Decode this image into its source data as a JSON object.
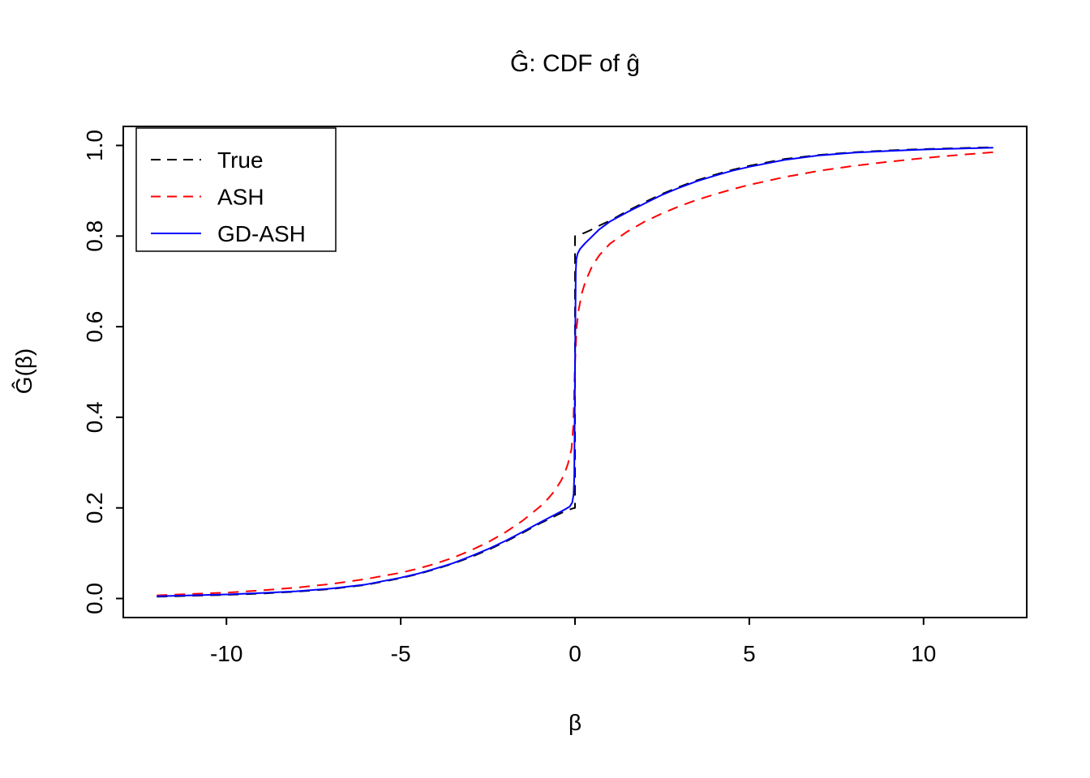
{
  "chart_data": {
    "type": "line",
    "title": "Ĝ: CDF of ĝ",
    "xlabel": "β",
    "ylabel": "Ĝ(β)",
    "xlim": [
      -12.96,
      12.96
    ],
    "ylim": [
      -0.042,
      1.042
    ],
    "x_ticks": [
      {
        "v": -10,
        "label": "-10"
      },
      {
        "v": -5,
        "label": "-5"
      },
      {
        "v": 0,
        "label": "0"
      },
      {
        "v": 5,
        "label": "5"
      },
      {
        "v": 10,
        "label": "10"
      }
    ],
    "y_ticks": [
      {
        "v": 0.0,
        "label": "0.0"
      },
      {
        "v": 0.2,
        "label": "0.2"
      },
      {
        "v": 0.4,
        "label": "0.4"
      },
      {
        "v": 0.6,
        "label": "0.6"
      },
      {
        "v": 0.8,
        "label": "0.8"
      },
      {
        "v": 1.0,
        "label": "1.0"
      }
    ],
    "legend_position": "top-left",
    "series": [
      {
        "name": "True",
        "color": "#000000",
        "dash": "dashed",
        "points": [
          [
            -12,
            0.004
          ],
          [
            -11,
            0.006
          ],
          [
            -10,
            0.008
          ],
          [
            -9,
            0.011
          ],
          [
            -8,
            0.015
          ],
          [
            -7,
            0.021
          ],
          [
            -6,
            0.03
          ],
          [
            -5,
            0.045
          ],
          [
            -4.5,
            0.054
          ],
          [
            -4,
            0.065
          ],
          [
            -3.5,
            0.077
          ],
          [
            -3,
            0.091
          ],
          [
            -2.5,
            0.107
          ],
          [
            -2,
            0.125
          ],
          [
            -1.5,
            0.145
          ],
          [
            -1,
            0.166
          ],
          [
            -0.7,
            0.177
          ],
          [
            -0.5,
            0.185
          ],
          [
            -0.3,
            0.192
          ],
          [
            -0.1,
            0.198
          ],
          [
            0,
            0.2
          ],
          [
            0,
            0.8
          ],
          [
            0.1,
            0.802
          ],
          [
            0.3,
            0.808
          ],
          [
            0.5,
            0.815
          ],
          [
            0.7,
            0.823
          ],
          [
            1,
            0.834
          ],
          [
            1.5,
            0.855
          ],
          [
            2,
            0.875
          ],
          [
            2.5,
            0.893
          ],
          [
            3,
            0.909
          ],
          [
            3.5,
            0.923
          ],
          [
            4,
            0.935
          ],
          [
            4.5,
            0.946
          ],
          [
            5,
            0.955
          ],
          [
            6,
            0.97
          ],
          [
            7,
            0.979
          ],
          [
            8,
            0.985
          ],
          [
            9,
            0.989
          ],
          [
            10,
            0.992
          ],
          [
            11,
            0.994
          ],
          [
            12,
            0.996
          ]
        ]
      },
      {
        "name": "ASH",
        "color": "#ff0000",
        "dash": "dashed",
        "points": [
          [
            -12,
            0.007
          ],
          [
            -11,
            0.01
          ],
          [
            -10,
            0.013
          ],
          [
            -9,
            0.018
          ],
          [
            -8,
            0.024
          ],
          [
            -7,
            0.032
          ],
          [
            -6,
            0.043
          ],
          [
            -5,
            0.057
          ],
          [
            -4.5,
            0.066
          ],
          [
            -4,
            0.077
          ],
          [
            -3.5,
            0.09
          ],
          [
            -3,
            0.106
          ],
          [
            -2.5,
            0.124
          ],
          [
            -2,
            0.146
          ],
          [
            -1.5,
            0.172
          ],
          [
            -1,
            0.203
          ],
          [
            -0.8,
            0.218
          ],
          [
            -0.6,
            0.236
          ],
          [
            -0.4,
            0.26
          ],
          [
            -0.3,
            0.276
          ],
          [
            -0.2,
            0.298
          ],
          [
            -0.1,
            0.33
          ],
          [
            -0.05,
            0.38
          ],
          [
            0,
            0.52
          ],
          [
            0.05,
            0.6
          ],
          [
            0.1,
            0.635
          ],
          [
            0.2,
            0.675
          ],
          [
            0.3,
            0.7
          ],
          [
            0.5,
            0.735
          ],
          [
            0.7,
            0.758
          ],
          [
            1,
            0.783
          ],
          [
            1.5,
            0.81
          ],
          [
            2,
            0.832
          ],
          [
            2.5,
            0.85
          ],
          [
            3,
            0.866
          ],
          [
            3.5,
            0.88
          ],
          [
            4,
            0.892
          ],
          [
            4.5,
            0.903
          ],
          [
            5,
            0.913
          ],
          [
            6,
            0.93
          ],
          [
            7,
            0.944
          ],
          [
            8,
            0.955
          ],
          [
            9,
            0.964
          ],
          [
            10,
            0.972
          ],
          [
            11,
            0.979
          ],
          [
            12,
            0.985
          ]
        ]
      },
      {
        "name": "GD-ASH",
        "color": "#0000ff",
        "dash": "solid",
        "points": [
          [
            -12,
            0.005
          ],
          [
            -11,
            0.007
          ],
          [
            -10,
            0.009
          ],
          [
            -9,
            0.012
          ],
          [
            -8,
            0.016
          ],
          [
            -7,
            0.022
          ],
          [
            -6,
            0.031
          ],
          [
            -5,
            0.046
          ],
          [
            -4.5,
            0.055
          ],
          [
            -4,
            0.066
          ],
          [
            -3.5,
            0.078
          ],
          [
            -3,
            0.093
          ],
          [
            -2.5,
            0.109
          ],
          [
            -2,
            0.127
          ],
          [
            -1.5,
            0.147
          ],
          [
            -1,
            0.168
          ],
          [
            -0.7,
            0.18
          ],
          [
            -0.5,
            0.188
          ],
          [
            -0.3,
            0.196
          ],
          [
            -0.15,
            0.203
          ],
          [
            -0.08,
            0.212
          ],
          [
            -0.04,
            0.23
          ],
          [
            -0.02,
            0.27
          ],
          [
            0,
            0.5
          ],
          [
            0.02,
            0.72
          ],
          [
            0.04,
            0.75
          ],
          [
            0.08,
            0.762
          ],
          [
            0.15,
            0.772
          ],
          [
            0.3,
            0.785
          ],
          [
            0.5,
            0.8
          ],
          [
            0.7,
            0.815
          ],
          [
            1,
            0.832
          ],
          [
            1.5,
            0.853
          ],
          [
            2,
            0.872
          ],
          [
            2.5,
            0.891
          ],
          [
            3,
            0.907
          ],
          [
            3.5,
            0.921
          ],
          [
            4,
            0.933
          ],
          [
            4.5,
            0.944
          ],
          [
            5,
            0.953
          ],
          [
            6,
            0.968
          ],
          [
            7,
            0.978
          ],
          [
            8,
            0.984
          ],
          [
            9,
            0.988
          ],
          [
            10,
            0.991
          ],
          [
            11,
            0.993
          ],
          [
            12,
            0.995
          ]
        ]
      }
    ]
  }
}
